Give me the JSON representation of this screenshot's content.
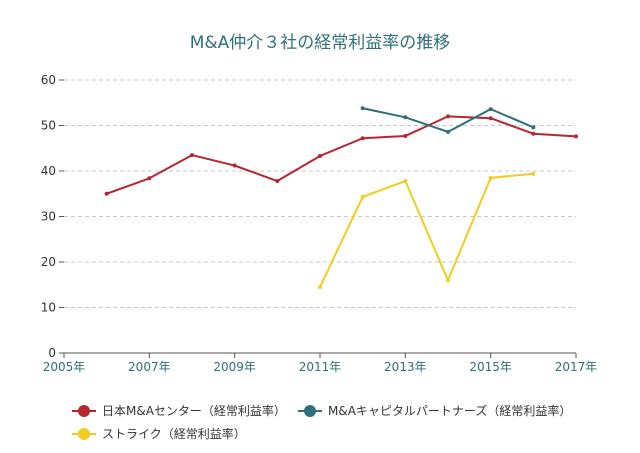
{
  "chart_data": {
    "type": "line",
    "title": "M&A仲介３社の経常利益率の推移",
    "xlabel": "",
    "ylabel": "",
    "xlim": [
      2005,
      2017
    ],
    "ylim": [
      0,
      60
    ],
    "x_ticks": [
      "2005年",
      "2007年",
      "2009年",
      "2011年",
      "2013年",
      "2015年",
      "2017年"
    ],
    "y_ticks": [
      "0",
      "10",
      "20",
      "30",
      "40",
      "50",
      "60"
    ],
    "grid": true,
    "legend_position": "bottom-left",
    "series": [
      {
        "name": "日本M&Aセンター（経常利益率）",
        "color": "#b5262f",
        "points": [
          [
            2006,
            35.0
          ],
          [
            2007,
            38.4
          ],
          [
            2008,
            43.5
          ],
          [
            2009,
            41.2
          ],
          [
            2010,
            37.8
          ],
          [
            2011,
            43.3
          ],
          [
            2012,
            47.2
          ],
          [
            2013,
            47.7
          ],
          [
            2014,
            52.0
          ],
          [
            2015,
            51.6
          ],
          [
            2016,
            48.2
          ],
          [
            2017,
            47.6
          ]
        ]
      },
      {
        "name": "M&Aキャピタルパートナーズ（経常利益率）",
        "color": "#2f6f7a",
        "points": [
          [
            2012,
            53.8
          ],
          [
            2013,
            51.8
          ],
          [
            2014,
            48.6
          ],
          [
            2015,
            53.6
          ],
          [
            2016,
            49.6
          ]
        ]
      },
      {
        "name": "ストライク（経常利益率）",
        "color": "#f2cc1e",
        "points": [
          [
            2011,
            14.5
          ],
          [
            2012,
            34.3
          ],
          [
            2013,
            37.8
          ],
          [
            2014,
            16.0
          ],
          [
            2015,
            38.5
          ],
          [
            2016,
            39.4
          ]
        ]
      }
    ]
  }
}
